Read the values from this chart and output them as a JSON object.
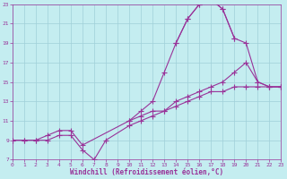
{
  "bg_color": "#c4edf0",
  "grid_color": "#a0d0d8",
  "line_color": "#993399",
  "xlabel": "Windchill (Refroidissement éolien,°C)",
  "xlim": [
    0,
    23
  ],
  "ylim": [
    7,
    23
  ],
  "xticks": [
    0,
    1,
    2,
    3,
    4,
    5,
    6,
    7,
    8,
    9,
    10,
    11,
    12,
    13,
    14,
    15,
    16,
    17,
    18,
    19,
    20,
    21,
    22,
    23
  ],
  "yticks": [
    7,
    9,
    11,
    13,
    15,
    17,
    19,
    21,
    23
  ],
  "line1_x": [
    0,
    1,
    2,
    3,
    4,
    5,
    6,
    7,
    8,
    10,
    11,
    12,
    13,
    14,
    15,
    16,
    17,
    18,
    19,
    20,
    21,
    22,
    23
  ],
  "line1_y": [
    9,
    9,
    9,
    9,
    9.5,
    9.5,
    8,
    7,
    9,
    10.5,
    11,
    11.5,
    12,
    12.5,
    13,
    13.5,
    14,
    14,
    14.5,
    14.5,
    14.5,
    14.5,
    14.5
  ],
  "line2_x": [
    0,
    1,
    2,
    3,
    4,
    5,
    6,
    10,
    11,
    12,
    13,
    14,
    15,
    16,
    17,
    18,
    19,
    20,
    21,
    22,
    23
  ],
  "line2_y": [
    9,
    9,
    9,
    9.5,
    10,
    10,
    8.5,
    11,
    11.5,
    12,
    12,
    13,
    13.5,
    14,
    14.5,
    15,
    16,
    17,
    15,
    14.5,
    14.5
  ],
  "line3_x": [
    10,
    11,
    12,
    13,
    14,
    15,
    16,
    17,
    18,
    19
  ],
  "line3_y": [
    11,
    12,
    13,
    16,
    19,
    21.5,
    23,
    23.5,
    22.5,
    19.5
  ],
  "line4_x": [
    14,
    15,
    16,
    17,
    18,
    19,
    20,
    21,
    22,
    23
  ],
  "line4_y": [
    19,
    21.5,
    23,
    23.5,
    22.5,
    19.5,
    19,
    15,
    14.5,
    14.5
  ]
}
